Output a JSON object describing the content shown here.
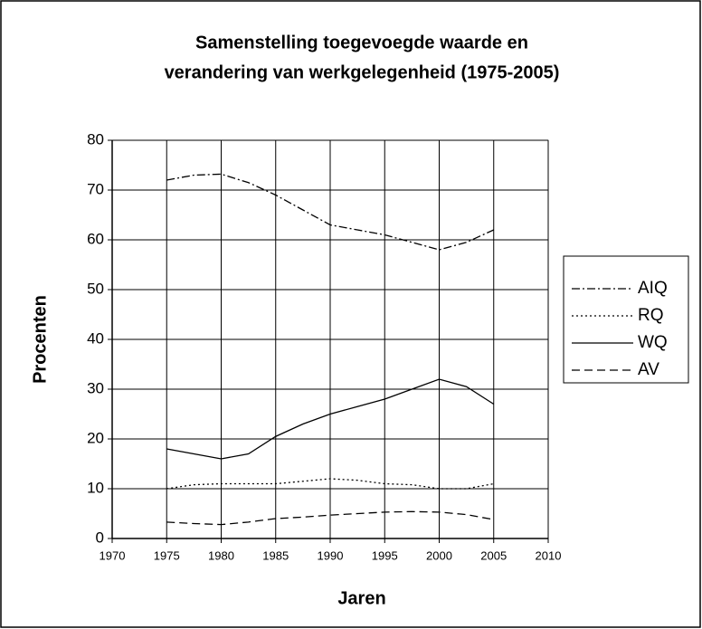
{
  "chart_data": {
    "type": "line",
    "title": [
      "Samenstelling toegevoegde waarde en",
      "verandering van werkgelegenheid (1975-2005)"
    ],
    "x_label": "Jaren",
    "y_label": "Procenten",
    "x": [
      1975,
      1977.5,
      1980,
      1982.5,
      1985,
      1987.5,
      1990,
      1992.5,
      1995,
      1997.5,
      2000,
      2002.5,
      2005
    ],
    "series": [
      {
        "name": "AIQ",
        "color": "#000000",
        "dash": "dash-dot",
        "values": [
          72,
          73,
          73.2,
          71.5,
          69,
          66,
          63,
          62,
          61,
          59.5,
          58,
          59.5,
          62
        ]
      },
      {
        "name": "RQ",
        "color": "#000000",
        "dash": "dotted",
        "values": [
          10,
          10.8,
          11,
          11,
          11,
          11.5,
          12,
          11.7,
          11,
          10.8,
          10,
          10,
          11
        ]
      },
      {
        "name": "WQ",
        "color": "#000000",
        "dash": "solid",
        "values": [
          18,
          17,
          16,
          17,
          20.5,
          23,
          25,
          26.5,
          28,
          30,
          32,
          30.5,
          27
        ]
      },
      {
        "name": "AV",
        "color": "#000000",
        "dash": "dashed",
        "values": [
          3.3,
          3,
          2.8,
          3.3,
          4,
          4.3,
          4.7,
          5,
          5.3,
          5.4,
          5.3,
          4.8,
          3.8
        ]
      }
    ],
    "xlim": [
      1970,
      2010
    ],
    "xticks": [
      1970,
      1975,
      1980,
      1985,
      1990,
      1995,
      2000,
      2005,
      2010
    ],
    "ylim": [
      0,
      80
    ],
    "yticks": [
      0,
      10,
      20,
      30,
      40,
      50,
      60,
      70,
      80
    ],
    "grid": true,
    "legend": "right"
  }
}
